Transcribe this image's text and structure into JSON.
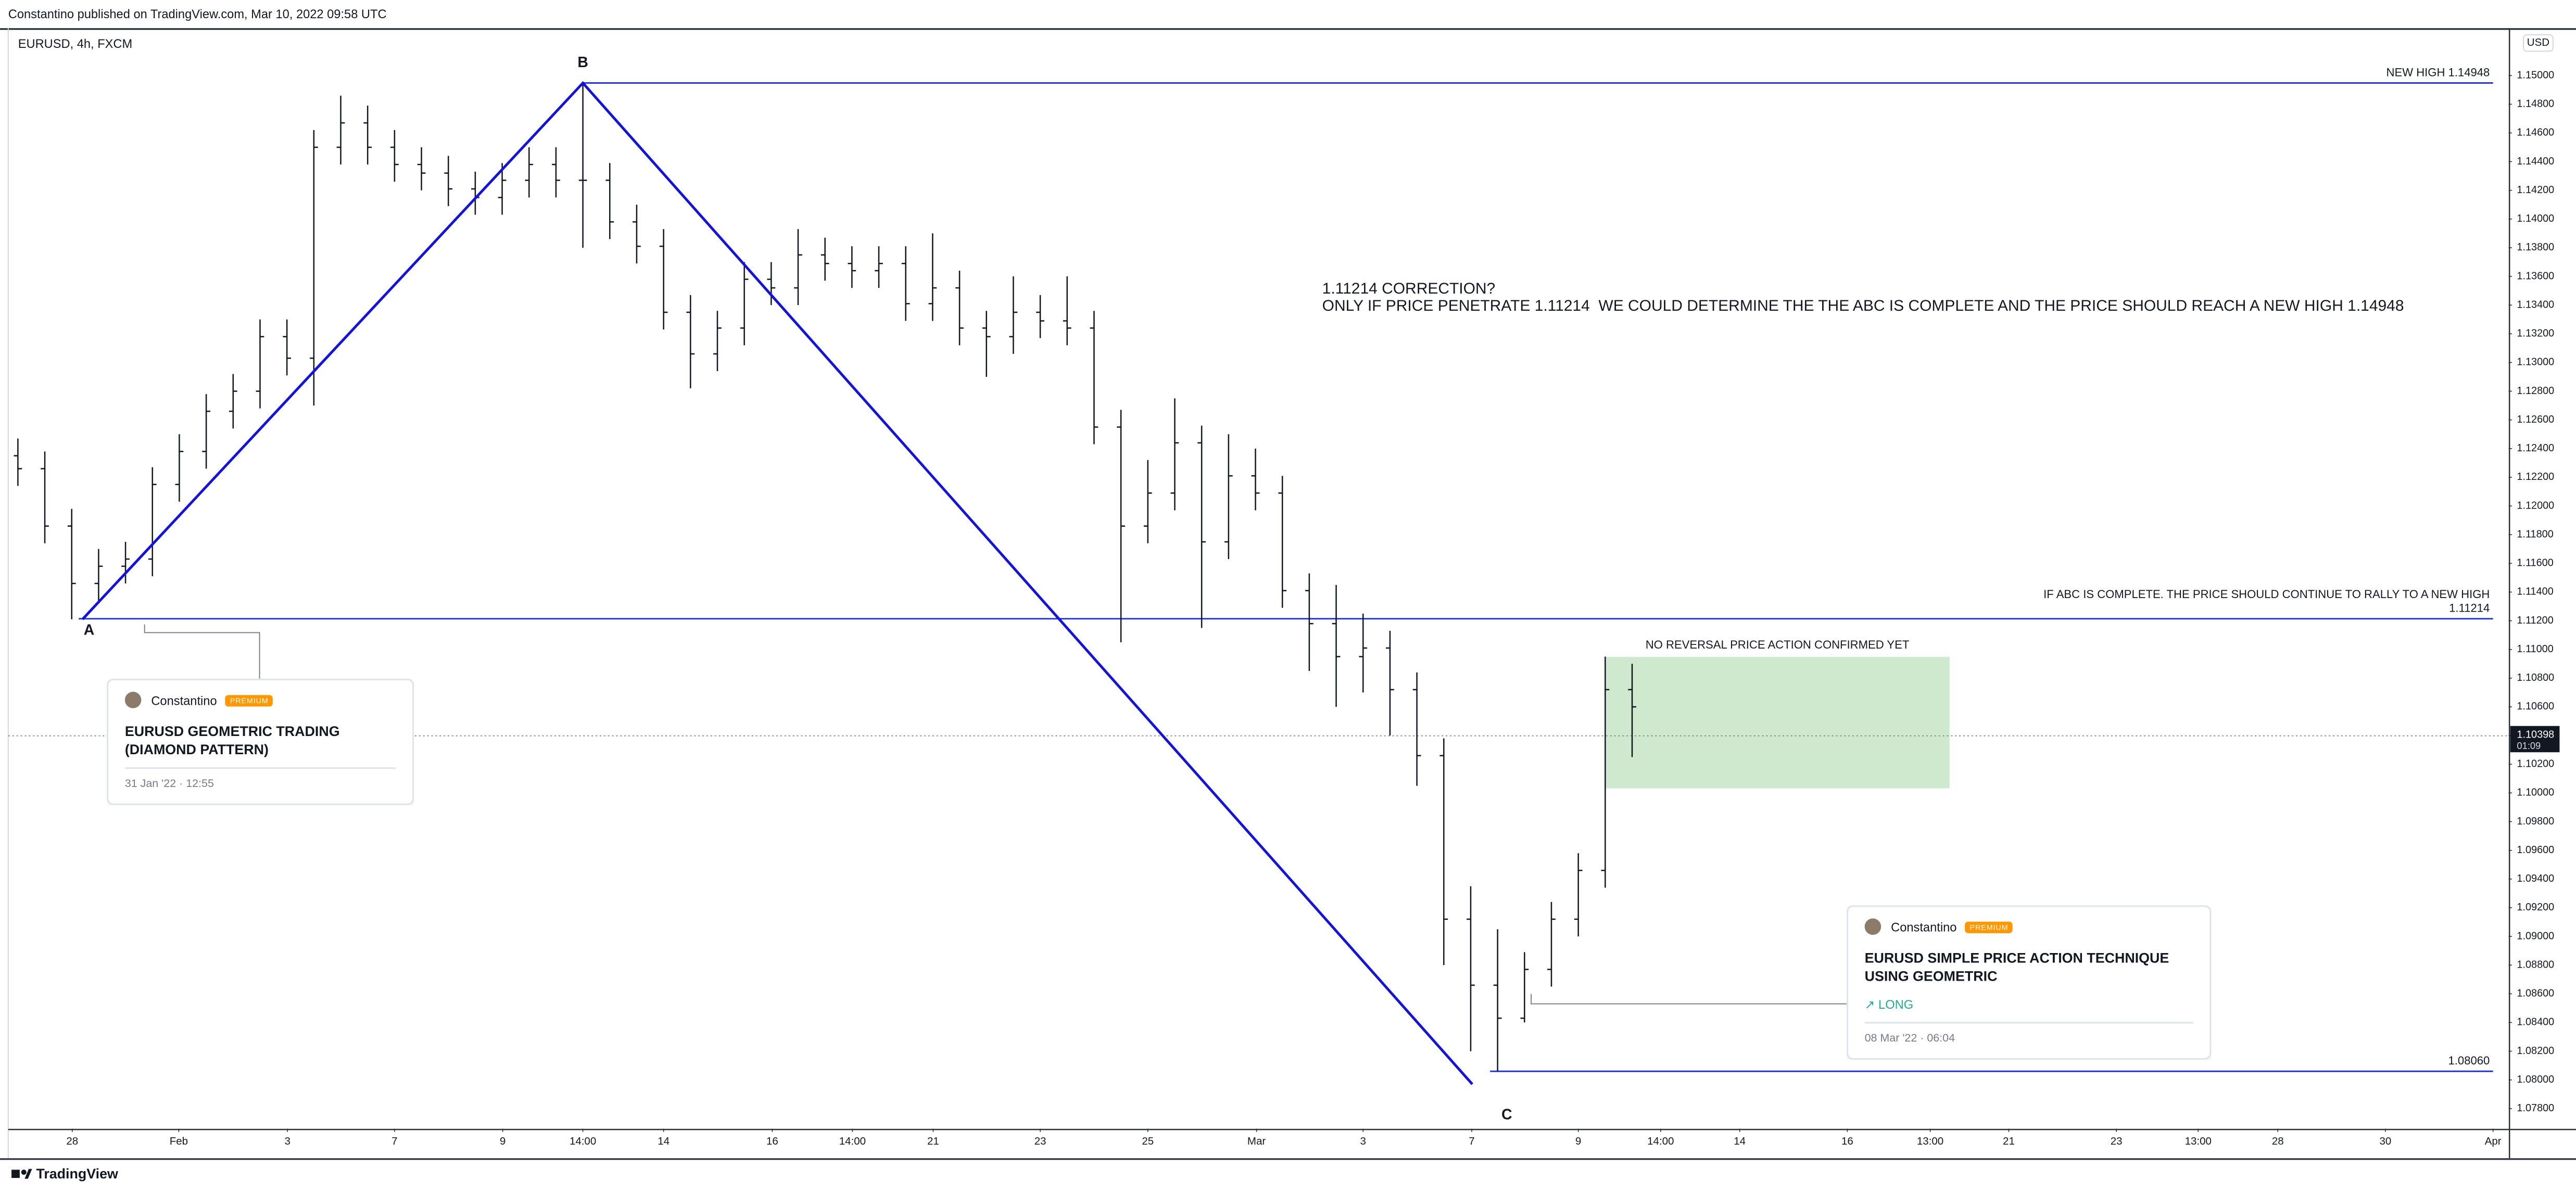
{
  "header": {
    "publisher": "Constantino published on TradingView.com, Mar 10, 2022 09:58 UTC"
  },
  "footer": {
    "brand": "TradingView"
  },
  "ideas": [
    {
      "author": "Constantino",
      "badge": "PREMIUM",
      "title": "EURUSD GEOMETRIC TRADING (DIAMOND PATTERN)",
      "date": "31 Jan '22 · 12:55"
    },
    {
      "author": "Constantino",
      "badge": "PREMIUM",
      "title": "EURUSD SIMPLE PRICE ACTION TECHNIQUE USING GEOMETRIC",
      "tag": "↗ LONG",
      "date": "08 Mar '22 · 06:04"
    }
  ],
  "chart_data": {
    "type": "ohlc",
    "title": "EURUSD, 4h, FXCM",
    "currency": "USD",
    "color": "#131722",
    "grid": false,
    "x": [
      0,
      0.5,
      1,
      1.5,
      2,
      2.5,
      3,
      3.5,
      4,
      4.5,
      5,
      5.5,
      6,
      6.5,
      7,
      7.5,
      8,
      8.5,
      9,
      9.5,
      10,
      10.5,
      11,
      11.5,
      12,
      12.5,
      13,
      13.5,
      14,
      14.5,
      15,
      15.5,
      16,
      16.5,
      17,
      17.5,
      18,
      18.5,
      19,
      19.5,
      20,
      20.5,
      21,
      21.5,
      22,
      22.5,
      23,
      23.5,
      24,
      24.5,
      25,
      25.5,
      26,
      26.5,
      27,
      27.5,
      28,
      28.5,
      29,
      29.5,
      30
    ],
    "open": [
      1.1235,
      1.1226,
      1.1186,
      1.1146,
      1.1158,
      1.1163,
      1.1215,
      1.1238,
      1.1266,
      1.128,
      1.1318,
      1.1303,
      1.145,
      1.1467,
      1.145,
      1.1438,
      1.1432,
      1.1421,
      1.1415,
      1.1427,
      1.1438,
      1.1427,
      1.1427,
      1.1398,
      1.1381,
      1.1335,
      1.1306,
      1.1324,
      1.1358,
      1.1352,
      1.1375,
      1.1369,
      1.1364,
      1.1369,
      1.1341,
      1.1352,
      1.1324,
      1.1318,
      1.1335,
      1.1329,
      1.1324,
      1.1255,
      1.1186,
      1.1209,
      1.1244,
      1.1175,
      1.1221,
      1.1209,
      1.1141,
      1.1118,
      1.1095,
      1.1101,
      1.1072,
      1.1026,
      1.0912,
      1.0866,
      1.0843,
      1.0877,
      1.0912,
      1.0946,
      1.1072
    ],
    "high": [
      1.1247,
      1.1238,
      1.1198,
      1.117,
      1.1175,
      1.1227,
      1.125,
      1.1278,
      1.1292,
      1.133,
      1.133,
      1.1462,
      1.1486,
      1.1479,
      1.1462,
      1.145,
      1.1444,
      1.1433,
      1.1439,
      1.145,
      1.145,
      1.1494,
      1.1439,
      1.141,
      1.1393,
      1.1347,
      1.1336,
      1.137,
      1.137,
      1.1393,
      1.1387,
      1.1381,
      1.1381,
      1.1381,
      1.139,
      1.1364,
      1.1336,
      1.136,
      1.1347,
      1.136,
      1.1336,
      1.1267,
      1.1232,
      1.1275,
      1.1256,
      1.125,
      1.124,
      1.1221,
      1.1153,
      1.1145,
      1.1125,
      1.1113,
      1.1084,
      1.1038,
      1.0935,
      1.0905,
      1.0889,
      1.0924,
      1.0958,
      1.1095,
      1.109
    ],
    "low": [
      1.1214,
      1.1174,
      1.1121,
      1.1134,
      1.1146,
      1.1151,
      1.1203,
      1.1226,
      1.1254,
      1.1268,
      1.1291,
      1.127,
      1.1438,
      1.1438,
      1.1426,
      1.142,
      1.1409,
      1.1403,
      1.1403,
      1.1415,
      1.1415,
      1.138,
      1.1386,
      1.1369,
      1.1323,
      1.1282,
      1.1294,
      1.1312,
      1.134,
      1.134,
      1.1357,
      1.1352,
      1.1352,
      1.1329,
      1.1329,
      1.1312,
      1.129,
      1.1306,
      1.1317,
      1.1312,
      1.1243,
      1.1105,
      1.1174,
      1.1197,
      1.1115,
      1.1163,
      1.1197,
      1.1129,
      1.1085,
      1.106,
      1.107,
      1.104,
      1.1005,
      1.088,
      1.082,
      1.0806,
      1.084,
      1.0865,
      1.09,
      1.0934,
      1.1025
    ],
    "close": [
      1.1226,
      1.1186,
      1.1146,
      1.1158,
      1.1163,
      1.1215,
      1.1238,
      1.1266,
      1.128,
      1.1318,
      1.1303,
      1.145,
      1.1467,
      1.145,
      1.1438,
      1.1432,
      1.1421,
      1.1415,
      1.1427,
      1.1438,
      1.1427,
      1.1427,
      1.1398,
      1.1381,
      1.1335,
      1.1306,
      1.1324,
      1.1358,
      1.1352,
      1.1375,
      1.1369,
      1.1364,
      1.1369,
      1.1341,
      1.1352,
      1.1324,
      1.1318,
      1.1335,
      1.1329,
      1.1324,
      1.1255,
      1.1186,
      1.1209,
      1.1244,
      1.1175,
      1.1221,
      1.1209,
      1.1141,
      1.1118,
      1.1095,
      1.1101,
      1.1072,
      1.1026,
      1.0912,
      1.0866,
      1.0843,
      1.0877,
      1.0912,
      1.0946,
      1.1072,
      1.106
    ],
    "xlim": [
      -0.18,
      46.29
    ],
    "ylim": [
      1.0766,
      1.1533
    ],
    "xticks": [
      {
        "value": 1.01,
        "label": "28"
      },
      {
        "value": 2.99,
        "label": "Feb"
      },
      {
        "value": 5.01,
        "label": "3"
      },
      {
        "value": 7.0,
        "label": "7"
      },
      {
        "value": 9.01,
        "label": "9"
      },
      {
        "value": 10.5,
        "label": "14:00"
      },
      {
        "value": 12.0,
        "label": "14"
      },
      {
        "value": 14.02,
        "label": "16"
      },
      {
        "value": 15.51,
        "label": "14:00"
      },
      {
        "value": 17.01,
        "label": "21"
      },
      {
        "value": 19.0,
        "label": "23"
      },
      {
        "value": 21.0,
        "label": "25"
      },
      {
        "value": 23.02,
        "label": "Mar"
      },
      {
        "value": 25.0,
        "label": "3"
      },
      {
        "value": 27.02,
        "label": "7"
      },
      {
        "value": 29.0,
        "label": "9"
      },
      {
        "value": 30.53,
        "label": "14:00"
      },
      {
        "value": 32.0,
        "label": "14"
      },
      {
        "value": 34.0,
        "label": "16"
      },
      {
        "value": 35.54,
        "label": "13:00"
      },
      {
        "value": 37.0,
        "label": "21"
      },
      {
        "value": 39.0,
        "label": "23"
      },
      {
        "value": 40.52,
        "label": "13:00"
      },
      {
        "value": 42.0,
        "label": "28"
      },
      {
        "value": 44.0,
        "label": "30"
      },
      {
        "value": 46.0,
        "label": "Apr"
      }
    ],
    "yticks": [
      {
        "value": 1.078,
        "label": "1.07800"
      },
      {
        "value": 1.08,
        "label": "1.08000"
      },
      {
        "value": 1.082,
        "label": "1.08200"
      },
      {
        "value": 1.084,
        "label": "1.08400"
      },
      {
        "value": 1.086,
        "label": "1.08600"
      },
      {
        "value": 1.088,
        "label": "1.08800"
      },
      {
        "value": 1.09,
        "label": "1.09000"
      },
      {
        "value": 1.092,
        "label": "1.09200"
      },
      {
        "value": 1.094,
        "label": "1.09400"
      },
      {
        "value": 1.096,
        "label": "1.09600"
      },
      {
        "value": 1.098,
        "label": "1.09800"
      },
      {
        "value": 1.1,
        "label": "1.10000"
      },
      {
        "value": 1.102,
        "label": "1.10200"
      },
      {
        "value": 1.104,
        "label": "1.10400"
      },
      {
        "value": 1.106,
        "label": "1.10600"
      },
      {
        "value": 1.108,
        "label": "1.10800"
      },
      {
        "value": 1.11,
        "label": "1.11000"
      },
      {
        "value": 1.112,
        "label": "1.11200"
      },
      {
        "value": 1.114,
        "label": "1.11400"
      },
      {
        "value": 1.116,
        "label": "1.11600"
      },
      {
        "value": 1.118,
        "label": "1.11800"
      },
      {
        "value": 1.12,
        "label": "1.12000"
      },
      {
        "value": 1.122,
        "label": "1.12200"
      },
      {
        "value": 1.124,
        "label": "1.12400"
      },
      {
        "value": 1.126,
        "label": "1.12600"
      },
      {
        "value": 1.128,
        "label": "1.12800"
      },
      {
        "value": 1.13,
        "label": "1.13000"
      },
      {
        "value": 1.132,
        "label": "1.13200"
      },
      {
        "value": 1.134,
        "label": "1.13400"
      },
      {
        "value": 1.136,
        "label": "1.13600"
      },
      {
        "value": 1.138,
        "label": "1.13800"
      },
      {
        "value": 1.14,
        "label": "1.14000"
      },
      {
        "value": 1.142,
        "label": "1.14200"
      },
      {
        "value": 1.144,
        "label": "1.14400"
      },
      {
        "value": 1.146,
        "label": "1.14600"
      },
      {
        "value": 1.148,
        "label": "1.14800"
      },
      {
        "value": 1.15,
        "label": "1.15000"
      }
    ],
    "last_price": {
      "value": 1.10398,
      "label": "1.10398",
      "countdown": "01:09",
      "color": "#131722"
    },
    "hlines": [
      {
        "value": 1.14948,
        "x": [
          10.5,
          46.0
        ],
        "label": "NEW HIGH 1.14948",
        "color": "#1e2fd0"
      },
      {
        "value": 1.11214,
        "x": [
          1.13,
          46.0
        ],
        "label": "1.11214",
        "note": "IF ABC IS COMPLETE. THE PRICE SHOULD CONTINUE TO RALLY TO A NEW HIGH",
        "color": "#1e2fd0"
      },
      {
        "value": 1.0806,
        "x": [
          27.36,
          46.0
        ],
        "label": "1.08060",
        "color": "#1e2fd0"
      }
    ],
    "pattern": {
      "color": "#1414d8",
      "points": [
        {
          "label": "A",
          "x": 1.2,
          "y": 1.1121
        },
        {
          "label": "B",
          "x": 10.5,
          "y": 1.14948
        },
        {
          "label": "C",
          "x": 27.03,
          "y": 1.0797
        }
      ]
    },
    "box": {
      "x": [
        29.5,
        35.9
      ],
      "y": [
        1.10032,
        1.10948
      ],
      "label": "NO REVERSAL PRICE ACTION CONFIRMED YET",
      "color": "#cfe9cf"
    },
    "annotation": {
      "x": 24.24,
      "y": 1.1351,
      "lines": [
        "1.11214 CORRECTION?",
        "ONLY IF PRICE PENETRATE 1.11214  WE COULD DETERMINE THE THE ABC IS COMPLETE AND THE PRICE SHOULD REACH A NEW HIGH 1.14948"
      ]
    }
  }
}
